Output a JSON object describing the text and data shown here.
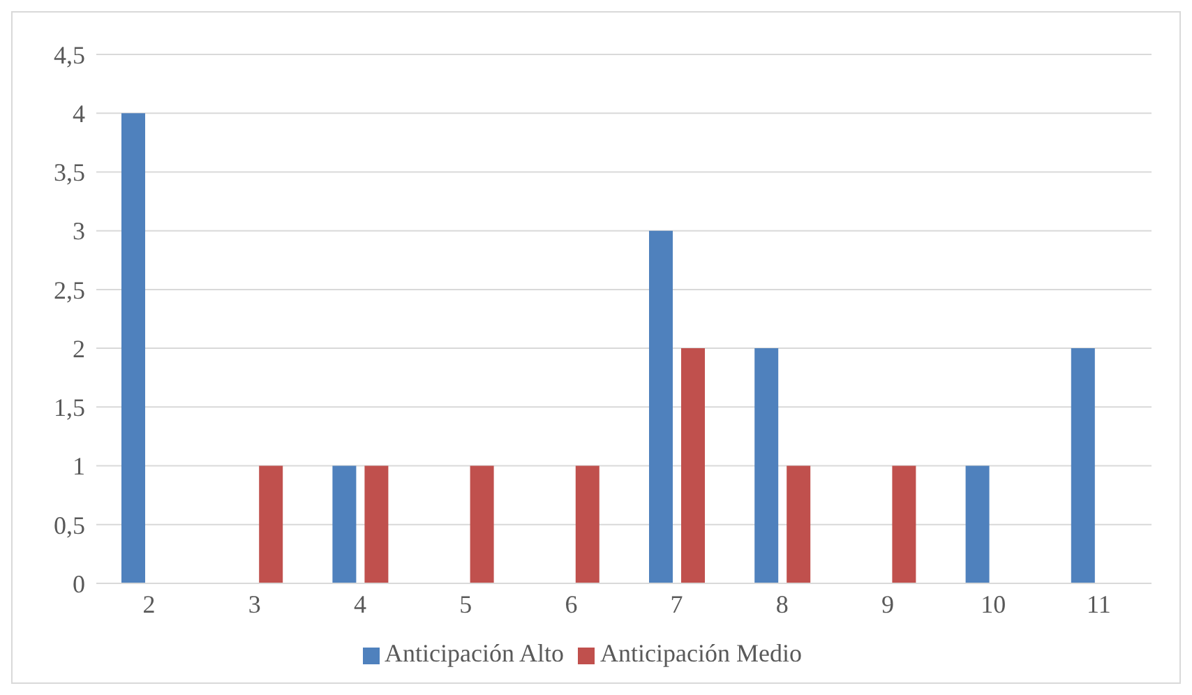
{
  "chart_data": {
    "type": "bar",
    "categories": [
      "2",
      "3",
      "4",
      "5",
      "6",
      "7",
      "8",
      "9",
      "10",
      "11"
    ],
    "series": [
      {
        "name": "Anticipación Alto",
        "color": "#4f81bd",
        "values": [
          4,
          0,
          1,
          0,
          0,
          3,
          2,
          0,
          1,
          2
        ]
      },
      {
        "name": "Anticipación Medio",
        "color": "#c0504d",
        "values": [
          0,
          1,
          1,
          1,
          1,
          2,
          1,
          1,
          0,
          0
        ]
      }
    ],
    "ylim": [
      0,
      4.5
    ],
    "yticks": [
      0,
      {
        "value": 0.5,
        "label": "0,5"
      },
      1,
      {
        "value": 1.5,
        "label": "1,5"
      },
      2,
      {
        "value": 2.5,
        "label": "2,5"
      },
      3,
      {
        "value": 3.5,
        "label": "3,5"
      },
      4,
      {
        "value": 4.5,
        "label": "4,5"
      }
    ],
    "grid": "y",
    "legend": "bottom"
  }
}
